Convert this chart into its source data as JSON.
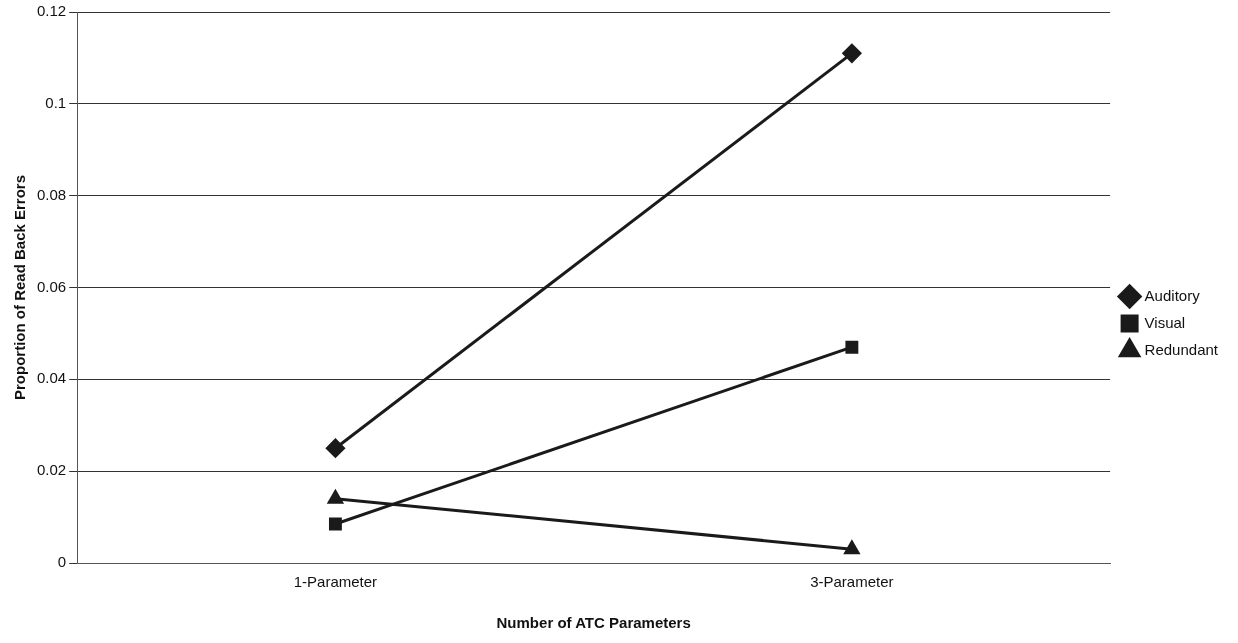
{
  "chart_data": {
    "type": "line",
    "xlabel": "Number of ATC Parameters",
    "ylabel": "Proportion of Read Back Errors",
    "categories": [
      "1-Parameter",
      "3-Parameter"
    ],
    "series": [
      {
        "name": "Auditory",
        "color": "#1a1a1a",
        "marker": "diamond",
        "values": [
          0.025,
          0.111
        ]
      },
      {
        "name": "Visual",
        "color": "#1a1a1a",
        "marker": "square",
        "values": [
          0.0085,
          0.047
        ]
      },
      {
        "name": "Redundant",
        "color": "#1a1a1a",
        "marker": "triangle",
        "values": [
          0.014,
          0.003
        ]
      }
    ],
    "ylim": [
      0,
      0.12
    ],
    "yticks": [
      0,
      0.02,
      0.04,
      0.06,
      0.08,
      0.1,
      0.12
    ],
    "grid": "y",
    "legend": "right",
    "line_style": "solid"
  }
}
